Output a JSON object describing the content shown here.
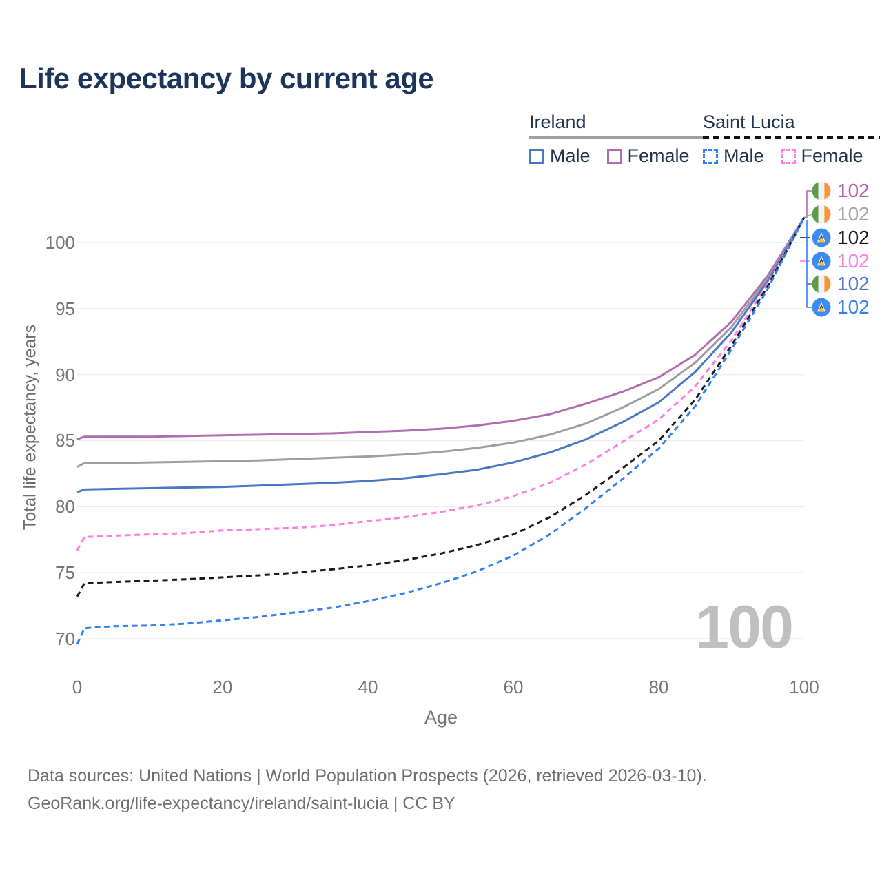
{
  "title": "Life expectancy by current age",
  "watermark": "100",
  "footer": {
    "line1": "Data sources: United Nations | World Population Prospects (2026, retrieved 2026-03-10).",
    "line2": "GeoRank.org/life-expectancy/ireland/saint-lucia | CC BY"
  },
  "legend": {
    "groups": [
      {
        "country": "Ireland",
        "style": "solid",
        "items": [
          {
            "label": "Male",
            "color": "#4a77c4",
            "style": "solid"
          },
          {
            "label": "Female",
            "color": "#b16bb1",
            "style": "solid"
          }
        ]
      },
      {
        "country": "Saint Lucia",
        "style": "dashed",
        "items": [
          {
            "label": "Male",
            "color": "#3181f2",
            "style": "dashed"
          },
          {
            "label": "Female",
            "color": "#ff7ce0",
            "style": "dashed"
          }
        ]
      }
    ]
  },
  "colors": {
    "title": "#1c355b",
    "axis_text": "#757575",
    "grid": "#ececec",
    "watermark": "#bfbfbf",
    "footer": "#6f6f6f"
  },
  "chart_data": {
    "type": "line",
    "title": "Life expectancy by current age",
    "xlabel": "Age",
    "ylabel": "Total life expectancy, years",
    "xlim": [
      0,
      100
    ],
    "ylim": [
      69,
      102.5
    ],
    "xticks": [
      0,
      20,
      40,
      60,
      80,
      100
    ],
    "yticks": [
      70,
      75,
      80,
      85,
      90,
      95,
      100
    ],
    "grid": "horizontal-only",
    "legend_position": "top-right",
    "x": [
      0,
      1,
      5,
      10,
      15,
      20,
      25,
      30,
      35,
      40,
      45,
      50,
      55,
      60,
      65,
      70,
      75,
      80,
      85,
      90,
      95,
      100
    ],
    "series": [
      {
        "name": "Ireland Female",
        "country": "Ireland",
        "sex": "Female",
        "line": "solid",
        "color": "#b16bb1",
        "values": [
          85.1,
          85.3,
          85.3,
          85.3,
          85.35,
          85.4,
          85.45,
          85.5,
          85.55,
          85.65,
          85.75,
          85.9,
          86.15,
          86.5,
          87.0,
          87.8,
          88.7,
          89.8,
          91.5,
          94.0,
          97.5,
          101.9
        ]
      },
      {
        "name": "Ireland Total",
        "country": "Ireland",
        "sex": "Both",
        "line": "solid",
        "color": "#9e9e9e",
        "values": [
          83.0,
          83.3,
          83.3,
          83.35,
          83.4,
          83.45,
          83.5,
          83.6,
          83.7,
          83.8,
          83.95,
          84.15,
          84.45,
          84.85,
          85.45,
          86.3,
          87.5,
          88.9,
          90.9,
          93.6,
          97.3,
          101.9
        ]
      },
      {
        "name": "Ireland Male",
        "country": "Ireland",
        "sex": "Male",
        "line": "solid",
        "color": "#4a77c4",
        "values": [
          81.1,
          81.3,
          81.35,
          81.4,
          81.45,
          81.5,
          81.6,
          81.7,
          81.8,
          81.95,
          82.15,
          82.45,
          82.8,
          83.35,
          84.1,
          85.1,
          86.4,
          87.9,
          90.2,
          93.2,
          97.1,
          101.9
        ]
      },
      {
        "name": "Saint Lucia Female",
        "country": "Saint Lucia",
        "sex": "Female",
        "line": "dashed",
        "color": "#ff7ce0",
        "values": [
          76.7,
          77.7,
          77.8,
          77.9,
          78.0,
          78.2,
          78.3,
          78.4,
          78.6,
          78.9,
          79.2,
          79.6,
          80.1,
          80.8,
          81.8,
          83.2,
          84.9,
          86.6,
          89.1,
          92.6,
          96.9,
          101.9
        ]
      },
      {
        "name": "Saint Lucia Total",
        "country": "Saint Lucia",
        "sex": "Both",
        "line": "dashed",
        "color": "#1a1a1a",
        "values": [
          73.2,
          74.2,
          74.3,
          74.4,
          74.5,
          74.65,
          74.8,
          75.0,
          75.25,
          75.55,
          75.95,
          76.45,
          77.1,
          77.9,
          79.2,
          80.9,
          82.9,
          85.0,
          88.1,
          92.2,
          96.7,
          101.9
        ]
      },
      {
        "name": "Saint Lucia Male",
        "country": "Saint Lucia",
        "sex": "Male",
        "line": "dashed",
        "color": "#3181f2",
        "values": [
          69.6,
          70.8,
          70.95,
          71.0,
          71.15,
          71.4,
          71.65,
          72.0,
          72.35,
          72.85,
          73.45,
          74.2,
          75.1,
          76.3,
          77.9,
          79.9,
          82.1,
          84.4,
          87.6,
          91.9,
          96.5,
          101.9
        ]
      }
    ],
    "end_labels": [
      {
        "flag": "ireland",
        "series": "Ireland Female",
        "value": "102",
        "color": "#ad62ad"
      },
      {
        "flag": "ireland",
        "series": "Ireland Total",
        "value": "102",
        "color": "#a6a6a6"
      },
      {
        "flag": "saintlucia",
        "series": "Saint Lucia Total",
        "value": "102",
        "color": "#1a1a1a"
      },
      {
        "flag": "saintlucia",
        "series": "Saint Lucia Female",
        "value": "102",
        "color": "#ff7ce0"
      },
      {
        "flag": "ireland",
        "series": "Ireland Male",
        "value": "102",
        "color": "#4a77c4"
      },
      {
        "flag": "saintlucia",
        "series": "Saint Lucia Male",
        "value": "102",
        "color": "#3181f2"
      }
    ]
  }
}
